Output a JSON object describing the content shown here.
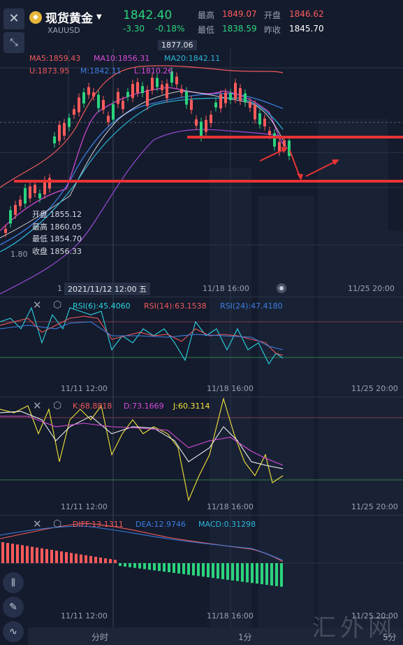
{
  "header": {
    "title": "现货黄金",
    "symbol": "XAUUSD",
    "price": "1842.40",
    "change": "-3.30",
    "change_pct": "-0.18%",
    "high_label": "最高",
    "high_value": "1849.07",
    "open_label": "开盘",
    "open_value": "1846.62",
    "low_label": "最低",
    "low_value": "1838.59",
    "prev_label": "昨收",
    "prev_value": "1845.70"
  },
  "main_chart": {
    "max_marker": "1877.06",
    "ma5": "MA5:1859.43",
    "ma10": "MA10:1856.31",
    "ma20": "MA20:1842.11",
    "boll_u": "U:1873.95",
    "boll_m": "M:1842.11",
    "boll_l": "L:1810.26",
    "ohlc_open": "开盘 1855.12",
    "ohlc_high": "最高 1860.05",
    "ohlc_low": "最低 1854.70",
    "ohlc_close": "收盘 1856.33",
    "side_value": "1.80",
    "crosshair_date": "2021/11/12 12:00 五",
    "crosshair_left": "1",
    "x_mid": "11/18 16:00",
    "x_right": "11/25 20:00"
  },
  "rsi_panel": {
    "rsi6": "RSI(6):45.4060",
    "rsi14": "RSI(14):63.1538",
    "rsi24": "RSI(24):47.4180",
    "x_left": "11/11 12:00",
    "x_mid": "11/18 16:00",
    "x_right": "11/25 20:00"
  },
  "kdj_panel": {
    "k": "K:68.8818",
    "d": "D:73.1669",
    "j": "J:60.3114",
    "x_left": "11/11 12:00",
    "x_mid": "11/18 16:00",
    "x_right": "11/25 20:00"
  },
  "macd_panel": {
    "diff": "DIFF:13.1311",
    "dea": "DEA:12.9746",
    "macd": "MACD:0.31298",
    "x_left": "11/11 12:00",
    "x_mid": "11/18 16:00",
    "x_right": "11/25 20:00"
  },
  "bottom_bar": {
    "tab_time": "分时",
    "tab_1m": "1分",
    "tab_5m": "5分"
  },
  "watermark": "汇外网",
  "colors": {
    "background": "#141b2d",
    "up": "#ff5b5b",
    "down": "#2bd47d",
    "ma5": "#f05a5a",
    "ma10": "#d84bd8",
    "ma20": "#2bb6d9",
    "boll_m": "#3d7fe0",
    "annotation_red": "#e83434",
    "yellow": "#f2e23a"
  }
}
